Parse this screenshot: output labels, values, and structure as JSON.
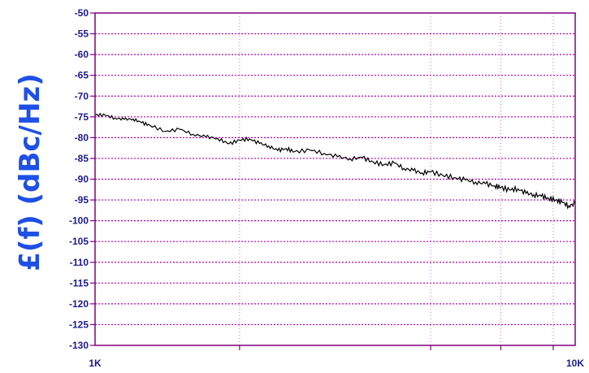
{
  "chart_data": {
    "type": "line",
    "title": "",
    "xlabel": "",
    "ylabel": "£(f) (dBc/Hz)",
    "xscale": "log",
    "xlim": [
      1000,
      10000
    ],
    "ylim": [
      -130,
      -50
    ],
    "grid": true,
    "x_tick_labels": [
      "1K",
      "10K"
    ],
    "x_ticks_minor": [
      2000,
      5000,
      7000,
      9000
    ],
    "y_ticks": [
      -50,
      -55,
      -60,
      -65,
      -70,
      -75,
      -80,
      -85,
      -90,
      -95,
      -100,
      -105,
      -110,
      -115,
      -120,
      -125,
      -130
    ],
    "y_tick_labels": [
      "-50",
      "-55",
      "-60",
      "-65",
      "-70",
      "-75",
      "-80",
      "-85",
      "-90",
      "-95",
      "-100",
      "-105",
      "-110",
      "-115",
      "-120",
      "-125",
      "-130"
    ],
    "colors": {
      "frame": "#800080",
      "grid": "#b000b0",
      "line": "#000000",
      "labels": "#1a1a8c",
      "ylabel": "#1e4fe6"
    },
    "series": [
      {
        "x": [
          1000,
          1050,
          1100,
          1150,
          1200,
          1250,
          1300,
          1400,
          1500,
          1600,
          1700,
          1800,
          1900,
          2000,
          2100,
          2200,
          2300,
          2400,
          2500,
          2600,
          2800,
          3000,
          3200,
          3400,
          3600,
          3800,
          4000,
          4200,
          4400,
          4600,
          4800,
          5000,
          5300,
          5600,
          5900,
          6200,
          6500,
          6800,
          7000,
          7300,
          7600,
          7900,
          8200,
          8500,
          8800,
          9100,
          9400,
          9700,
          10000
        ],
        "y": [
          -74.5,
          -74.6,
          -75.3,
          -75.6,
          -75.5,
          -76.4,
          -77.0,
          -78.5,
          -78.0,
          -79.2,
          -79.8,
          -80.2,
          -81.5,
          -80.6,
          -80.3,
          -81.4,
          -82.0,
          -83.1,
          -82.6,
          -83.4,
          -83.0,
          -83.8,
          -84.6,
          -85.1,
          -84.8,
          -85.9,
          -86.5,
          -86.1,
          -87.4,
          -87.9,
          -88.5,
          -88.2,
          -89.1,
          -89.6,
          -90.2,
          -90.7,
          -91.1,
          -91.6,
          -92.0,
          -92.6,
          -92.3,
          -93.4,
          -93.7,
          -94.1,
          -94.6,
          -95.0,
          -95.6,
          -96.4,
          -95.9
        ]
      }
    ]
  }
}
